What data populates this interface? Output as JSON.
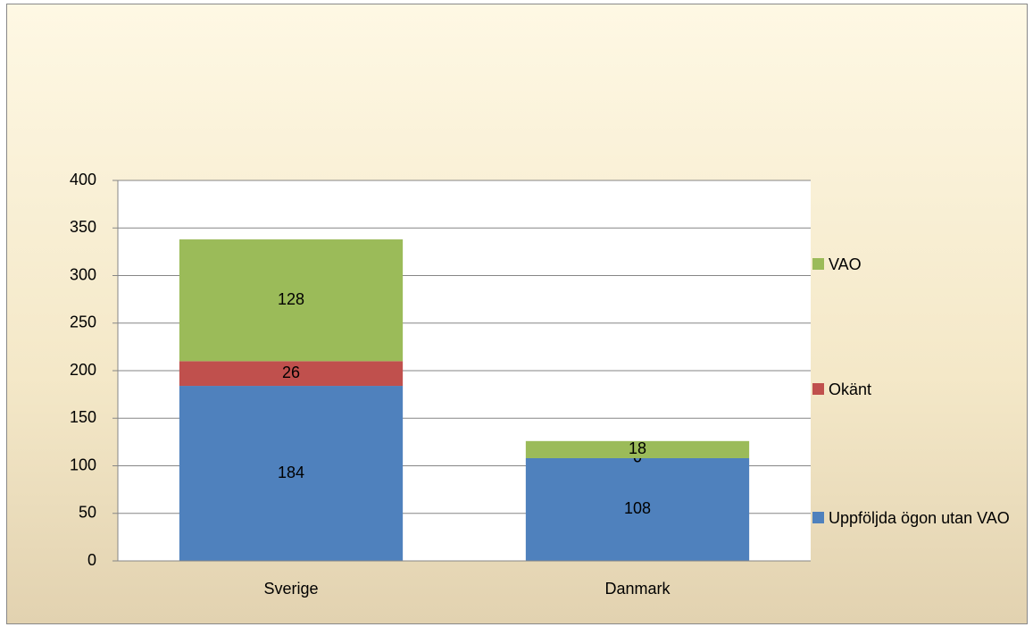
{
  "chart_data": {
    "type": "stacked_bar",
    "categories": [
      "Sverige",
      "Danmark"
    ],
    "series": [
      {
        "name": "Uppföljda ögon utan VAO",
        "color": "#4f81bd",
        "values": [
          184,
          108
        ]
      },
      {
        "name": "Okänt",
        "color": "#c0504d",
        "values": [
          26,
          0
        ]
      },
      {
        "name": "VAO",
        "color": "#9bbb59",
        "values": [
          128,
          18
        ]
      }
    ],
    "ylim": [
      0,
      400
    ],
    "yticks": [
      0,
      50,
      100,
      150,
      200,
      250,
      300,
      350,
      400
    ],
    "grid": true,
    "legend": "right"
  }
}
